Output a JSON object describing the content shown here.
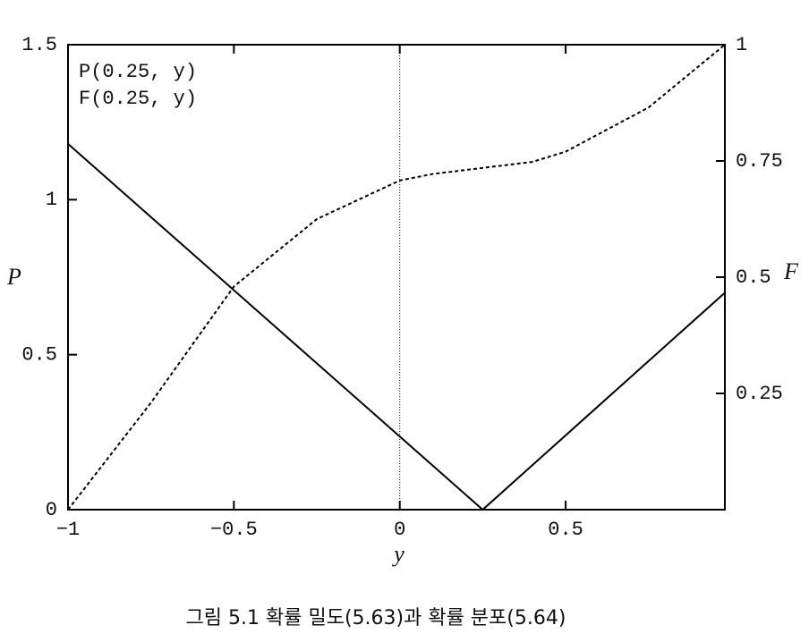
{
  "chart_data": {
    "type": "line",
    "caption": "그림 5.1  확률 밀도(5.63)과 확률 분포(5.64)",
    "xlabel": "y",
    "ylabel": "P",
    "y2label": "F",
    "xlim": [
      -1,
      0.98
    ],
    "ylim": [
      0,
      1.5
    ],
    "y2lim": [
      0,
      1
    ],
    "xticks": [
      {
        "value": -1,
        "label": "−1"
      },
      {
        "value": -0.5,
        "label": "−0.5"
      },
      0,
      0.5
    ],
    "yticks": [
      0,
      0.5,
      1,
      1.5
    ],
    "y2ticks": [
      0.25,
      0.5,
      0.75,
      1
    ],
    "vline_x": 0,
    "series": [
      {
        "name": "P(0.25, y)",
        "color": "#000000",
        "style": "solid",
        "x": [
          -1,
          0.25,
          0.98
        ],
        "values": [
          1.18,
          0,
          0.7
        ]
      },
      {
        "name": "F(0.25, y)",
        "color": "#000000",
        "style": "dashed",
        "axis": "y2",
        "x": [
          -1,
          -0.75,
          -0.5,
          -0.25,
          0,
          0.1,
          0.25,
          0.4,
          0.5,
          0.75,
          0.98
        ],
        "values": [
          0,
          0.23,
          0.48,
          0.625,
          0.708,
          0.722,
          0.735,
          0.748,
          0.77,
          0.865,
          1
        ]
      }
    ]
  }
}
